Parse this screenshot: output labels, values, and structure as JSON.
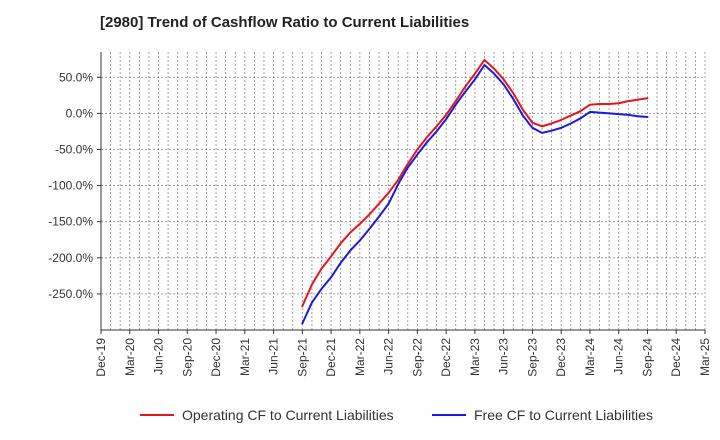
{
  "chart_data": {
    "type": "line",
    "title": "[2980]  Trend of Cashflow Ratio to Current Liabilities",
    "xlabel": "",
    "ylabel": "",
    "x_ticks": [
      "Dec-19",
      "Mar-20",
      "Jun-20",
      "Sep-20",
      "Dec-20",
      "Mar-21",
      "Jun-21",
      "Sep-21",
      "Dec-21",
      "Mar-22",
      "Jun-22",
      "Sep-22",
      "Dec-22",
      "Mar-23",
      "Jun-23",
      "Sep-23",
      "Dec-23",
      "Mar-24",
      "Jun-24",
      "Sep-24",
      "Dec-24",
      "Mar-25"
    ],
    "y_ticks": [
      {
        "value": 50,
        "label": "50.0%"
      },
      {
        "value": 0,
        "label": "0.0%"
      },
      {
        "value": -50,
        "label": "-50.0%"
      },
      {
        "value": -100,
        "label": "-100.0%"
      },
      {
        "value": -150,
        "label": "-150.0%"
      },
      {
        "value": -200,
        "label": "-200.0%"
      },
      {
        "value": -250,
        "label": "-250.0%"
      }
    ],
    "ylim": [
      -300,
      85
    ],
    "grid": true,
    "legend_position": "bottom",
    "series": [
      {
        "name": "Operating CF to Current Liabilities",
        "color": "#e8141b",
        "points": [
          [
            "Sep-21",
            -267
          ],
          [
            "Oct-21",
            -237
          ],
          [
            "Nov-21",
            -215
          ],
          [
            "Dec-21",
            -198
          ],
          [
            "Jan-22",
            -180
          ],
          [
            "Feb-22",
            -165
          ],
          [
            "Mar-22",
            -153
          ],
          [
            "Apr-22",
            -140
          ],
          [
            "May-22",
            -125
          ],
          [
            "Jun-22",
            -110
          ],
          [
            "Jul-22",
            -92
          ],
          [
            "Aug-22",
            -70
          ],
          [
            "Sep-22",
            -50
          ],
          [
            "Oct-22",
            -33
          ],
          [
            "Nov-22",
            -18
          ],
          [
            "Dec-22",
            -2
          ],
          [
            "Jan-23",
            17
          ],
          [
            "Feb-23",
            37
          ],
          [
            "Mar-23",
            55
          ],
          [
            "Apr-23",
            74
          ],
          [
            "May-23",
            62
          ],
          [
            "Jun-23",
            47
          ],
          [
            "Jul-23",
            28
          ],
          [
            "Aug-23",
            5
          ],
          [
            "Sep-23",
            -13
          ],
          [
            "Oct-23",
            -18
          ],
          [
            "Nov-23",
            -14
          ],
          [
            "Dec-23",
            -9
          ],
          [
            "Jan-24",
            -3
          ],
          [
            "Feb-24",
            3
          ],
          [
            "Mar-24",
            12
          ],
          [
            "Apr-24",
            13
          ],
          [
            "May-24",
            13
          ],
          [
            "Jun-24",
            14
          ],
          [
            "Jul-24",
            17
          ],
          [
            "Aug-24",
            19
          ],
          [
            "Sep-24",
            21
          ]
        ]
      },
      {
        "name": "Free CF to Current Liabilities",
        "color": "#1a1adc",
        "points": [
          [
            "Sep-21",
            -291
          ],
          [
            "Oct-21",
            -262
          ],
          [
            "Nov-21",
            -243
          ],
          [
            "Dec-21",
            -227
          ],
          [
            "Jan-22",
            -207
          ],
          [
            "Feb-22",
            -190
          ],
          [
            "Mar-22",
            -176
          ],
          [
            "Apr-22",
            -160
          ],
          [
            "May-22",
            -143
          ],
          [
            "Jun-22",
            -125
          ],
          [
            "Jul-22",
            -98
          ],
          [
            "Aug-22",
            -75
          ],
          [
            "Sep-22",
            -57
          ],
          [
            "Oct-22",
            -40
          ],
          [
            "Nov-22",
            -25
          ],
          [
            "Dec-22",
            -8
          ],
          [
            "Jan-23",
            12
          ],
          [
            "Feb-23",
            30
          ],
          [
            "Mar-23",
            47
          ],
          [
            "Apr-23",
            67
          ],
          [
            "May-23",
            55
          ],
          [
            "Jun-23",
            40
          ],
          [
            "Jul-23",
            20
          ],
          [
            "Aug-23",
            -3
          ],
          [
            "Sep-23",
            -20
          ],
          [
            "Oct-23",
            -27
          ],
          [
            "Nov-23",
            -24
          ],
          [
            "Dec-23",
            -20
          ],
          [
            "Jan-24",
            -14
          ],
          [
            "Feb-24",
            -7
          ],
          [
            "Mar-24",
            2
          ],
          [
            "Apr-24",
            1
          ],
          [
            "May-24",
            0
          ],
          [
            "Jun-24",
            -1
          ],
          [
            "Jul-24",
            -2
          ],
          [
            "Aug-24",
            -4
          ],
          [
            "Sep-24",
            -5
          ]
        ]
      }
    ]
  }
}
